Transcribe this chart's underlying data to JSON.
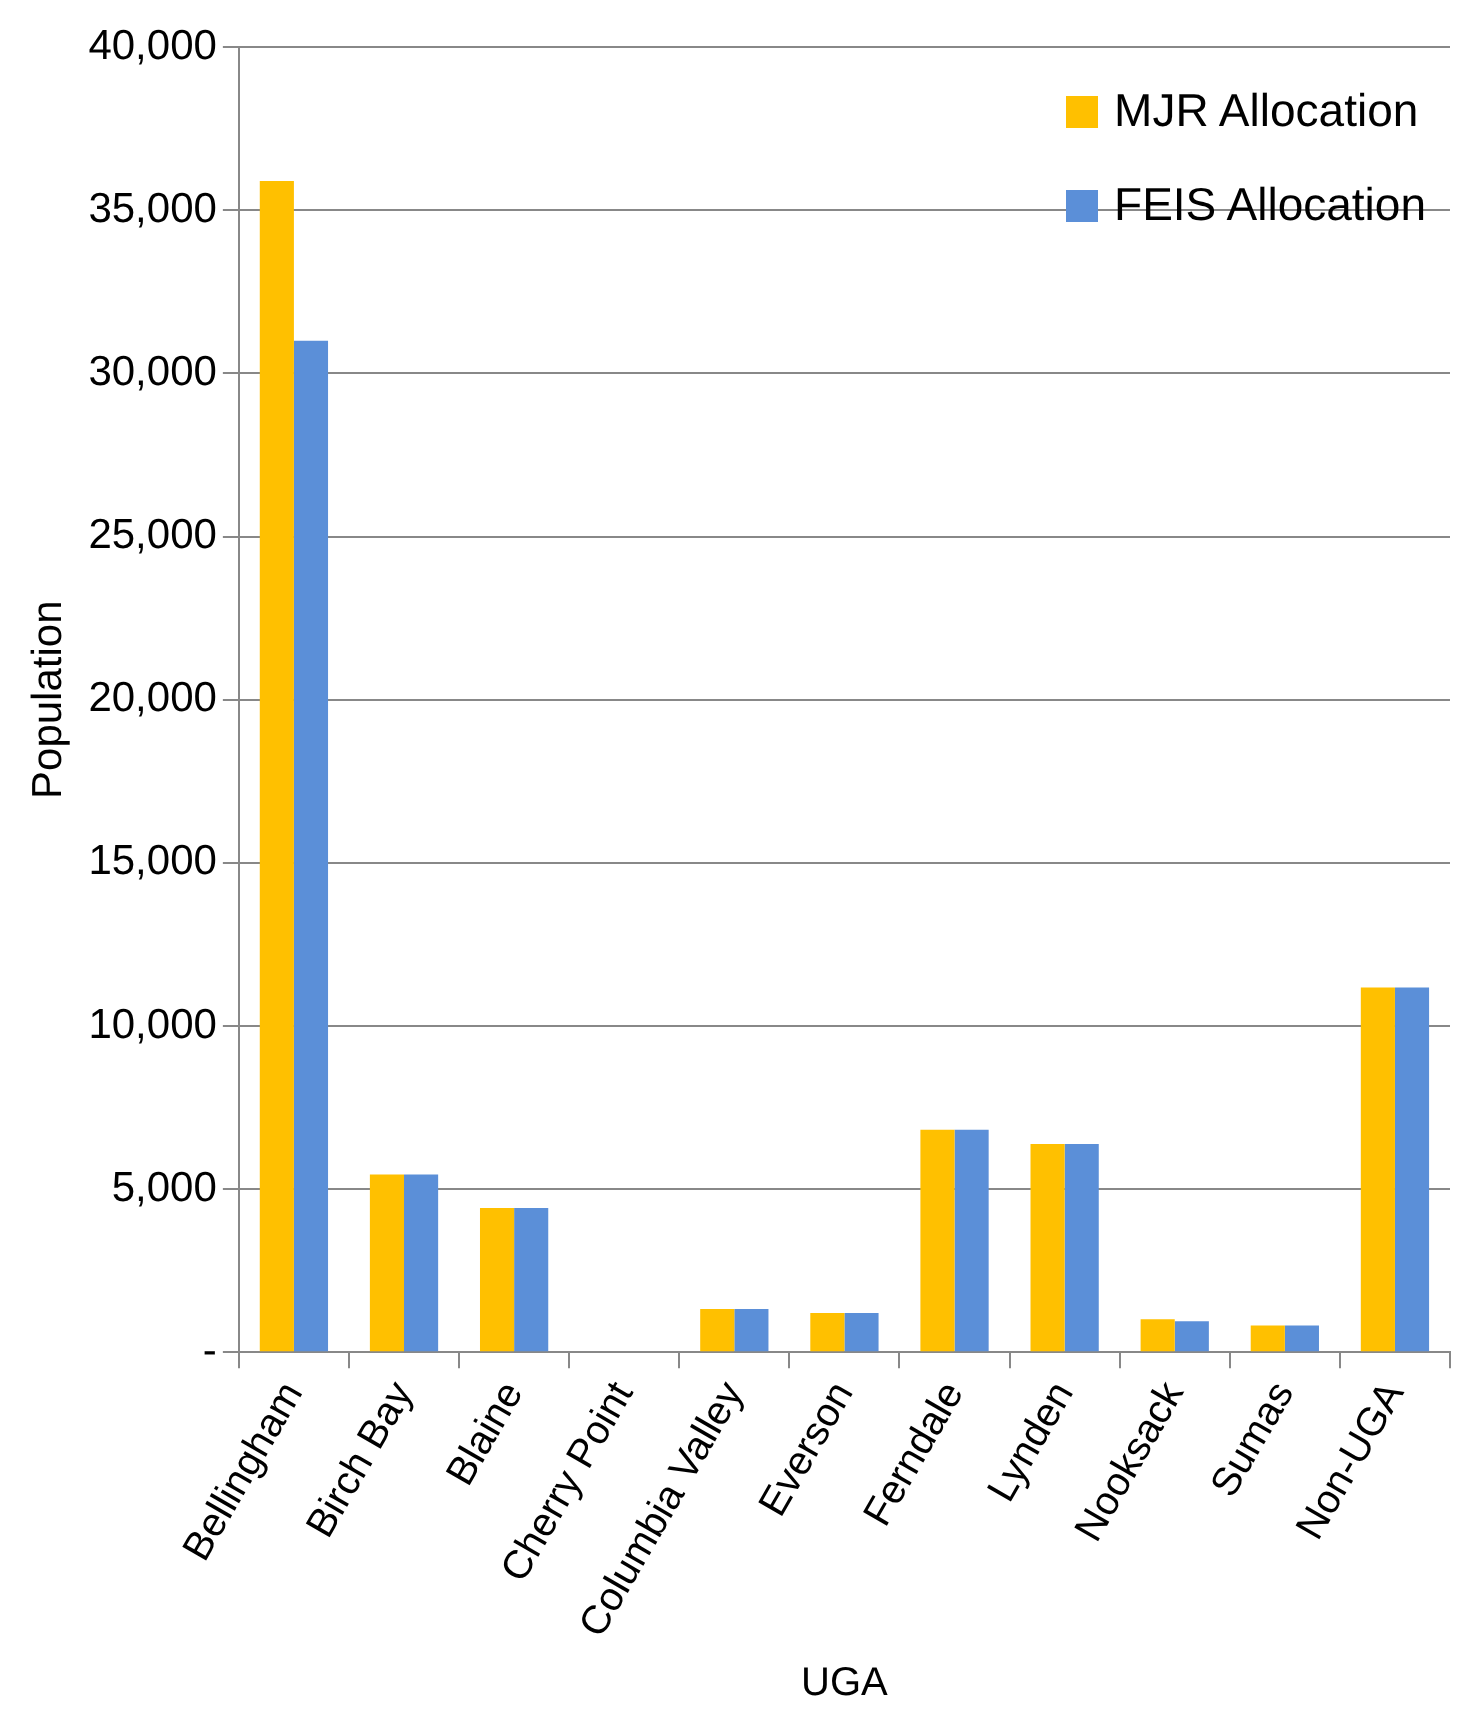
{
  "chart_data": {
    "type": "bar",
    "xlabel": "UGA",
    "ylabel": "Population",
    "categories": [
      "Bellingham",
      "Birch Bay",
      "Blaine",
      "Cherry Point",
      "Columbia Valley",
      "Everson",
      "Ferndale",
      "Lynden",
      "Nooksack",
      "Sumas",
      "Non-UGA"
    ],
    "series": [
      {
        "name": "MJR Allocation",
        "color": "#ffc000",
        "values": [
          35900,
          5450,
          4420,
          0,
          1330,
          1200,
          6820,
          6380,
          1010,
          820,
          11180
        ]
      },
      {
        "name": "FEIS Allocation",
        "color": "#5b8fd8",
        "values": [
          31000,
          5450,
          4420,
          0,
          1330,
          1200,
          6820,
          6380,
          950,
          820,
          11180
        ]
      }
    ],
    "ylim": [
      0,
      40000
    ],
    "yticks": [
      {
        "value": 0,
        "label": "-"
      },
      {
        "value": 5000,
        "label": "5,000"
      },
      {
        "value": 10000,
        "label": "10,000"
      },
      {
        "value": 15000,
        "label": "15,000"
      },
      {
        "value": 20000,
        "label": "20,000"
      },
      {
        "value": 25000,
        "label": "25,000"
      },
      {
        "value": 30000,
        "label": "30,000"
      },
      {
        "value": 35000,
        "label": "35,000"
      },
      {
        "value": 40000,
        "label": "40,000"
      }
    ],
    "grid": "y",
    "legend": "top right"
  }
}
